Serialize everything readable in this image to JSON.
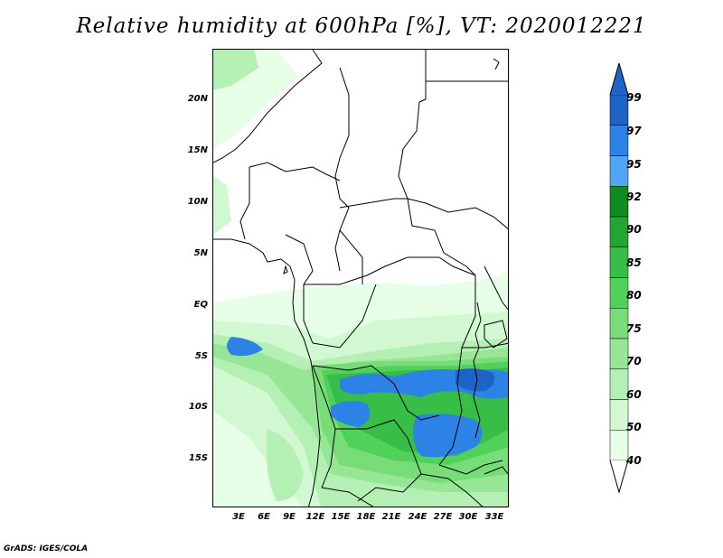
{
  "title": "Relative humidity at 600hPa [%], VT: 2020012221",
  "credit": "GrADS: IGES/COLA",
  "lat_labels": [
    "20N",
    "15N",
    "10N",
    "5N",
    "EQ",
    "5S",
    "10S",
    "15S"
  ],
  "lon_labels": [
    "3E",
    "6E",
    "9E",
    "12E",
    "15E",
    "18E",
    "21E",
    "24E",
    "27E",
    "30E",
    "33E"
  ],
  "colorbar": {
    "levels": [
      "99",
      "97",
      "95",
      "92",
      "90",
      "85",
      "80",
      "75",
      "70",
      "60",
      "50",
      "40"
    ],
    "colors": [
      "#1e64c8",
      "#2d82e6",
      "#50a5f5",
      "#0f8c1e",
      "#23a532",
      "#37be46",
      "#50d25a",
      "#78dc78",
      "#96e696",
      "#b4f0b4",
      "#d2f8d2",
      "#e6ffe6"
    ]
  },
  "map": {
    "variable": "Relative humidity",
    "level": "600hPa",
    "units": "%",
    "valid_time": "2020012221"
  }
}
